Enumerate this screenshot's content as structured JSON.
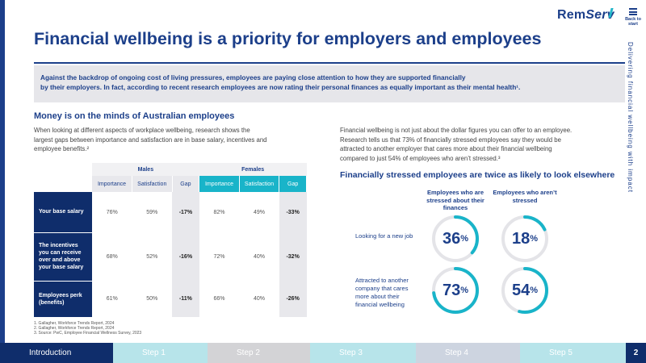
{
  "header": {
    "logo_a": "Rem",
    "logo_b": "Serv",
    "back_label": "Back to start",
    "side_tag": "Delivering financial wellbeing with impact"
  },
  "title": "Financial wellbeing is a priority for employers and employees",
  "intro": {
    "line1": "Against the backdrop of ongoing cost of living pressures, employees are paying close attention to how they are supported financially",
    "line2": "by their employers. In fact, according to recent research employees are now rating their personal finances as equally important as their mental health¹."
  },
  "left": {
    "heading": "Money is on the minds of Australian employees",
    "lines": [
      "When looking at different aspects of workplace wellbeing, research shows the",
      "largest gaps between importance and satisfaction are in base salary, incentives and",
      "employee benefits.²"
    ]
  },
  "table": {
    "groups": [
      "Males",
      "Females"
    ],
    "columns": [
      "Importance",
      "Satisfaction",
      "Gap",
      "Importance",
      "Satisfaction",
      "Gap"
    ],
    "rows": [
      {
        "label": "Your base salary",
        "values": [
          "76%",
          "59%",
          "-17%",
          "82%",
          "49%",
          "-33%"
        ]
      },
      {
        "label": "The incentives you can receive over and above your base salary",
        "values": [
          "68%",
          "52%",
          "-16%",
          "72%",
          "40%",
          "-32%"
        ]
      },
      {
        "label": "Employees perk (benefits)",
        "values": [
          "61%",
          "50%",
          "-11%",
          "66%",
          "40%",
          "-26%"
        ]
      }
    ]
  },
  "right": {
    "lines": [
      "Financial wellbeing is not just about the dollar figures you can offer to an employee.",
      "Research tells us that 73% of financially stressed employees say they would be",
      "attracted to another employer that cares more about their financial wellbeing",
      "compared to just 54% of employees who aren’t stressed.³"
    ],
    "heading": "Financially stressed employees are twice as likely to look elsewhere",
    "col_stressed": "Employees who are stressed about their finances",
    "col_not": "Employees who aren’t stressed",
    "rows": [
      {
        "label": "Looking for a new job",
        "stressed": 36,
        "not": 18
      },
      {
        "label": "Attracted to another company that cares more about their financial wellbeing",
        "stressed": 73,
        "not": 54
      }
    ],
    "ring_color": "#19b4c9",
    "ring_track": "#e4e4e8"
  },
  "footnotes": [
    "1. Gallagher, Workforce Trends Report, 2024",
    "2. Gallagher, Workforce Trends Report, 2024",
    "3. Source: PwC, Employee Financial Wellness Survey, 2023"
  ],
  "nav": {
    "items": [
      {
        "label": "Introduction",
        "bg": "#0f2d6b",
        "fg": "#ffffff",
        "width": 140
      },
      {
        "label": "Step 1",
        "bg": "#b7e4ea",
        "fg": "#ffffff",
        "width": 117
      },
      {
        "label": "Step 2",
        "bg": "#d3d3d6",
        "fg": "#ffffff",
        "width": 127
      },
      {
        "label": "Step 3",
        "bg": "#b7e4ea",
        "fg": "#ffffff",
        "width": 131
      },
      {
        "label": "Step 4",
        "bg": "#cdd4e0",
        "fg": "#ffffff",
        "width": 129
      },
      {
        "label": "Step 5",
        "bg": "#b7e4ea",
        "fg": "#ffffff",
        "width": 131
      }
    ],
    "page": "2",
    "page_bg": "#0f2d6b"
  }
}
